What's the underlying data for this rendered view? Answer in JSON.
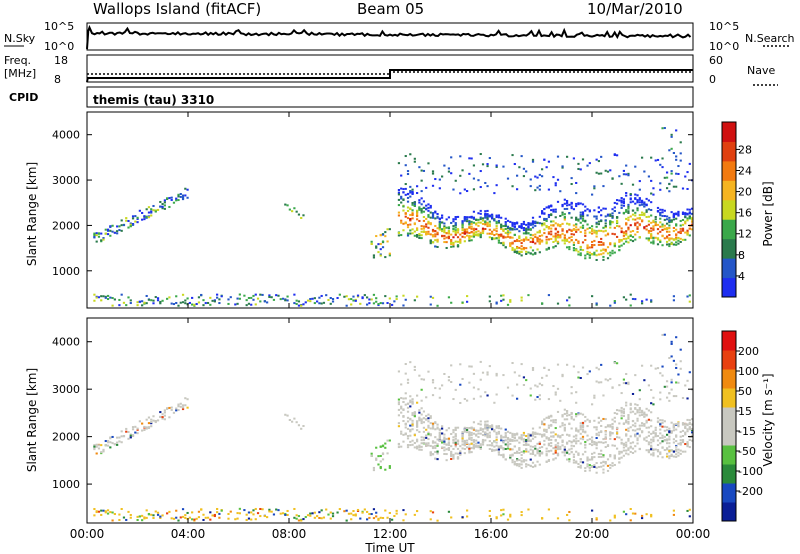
{
  "header": {
    "station": "Wallops Island (fitACF)",
    "beam": "Beam 05",
    "date": "10/Mar/2010"
  },
  "noise_panel": {
    "left_label": "N.Sky",
    "right_label": "N.Search",
    "left_ticks": [
      "10^5",
      "10^0"
    ],
    "right_ticks": [
      "10^5",
      "10^0"
    ]
  },
  "freq_panel": {
    "left_label_line1": "Freq.",
    "left_label_line2": "[MHz]",
    "right_label": "Nave",
    "left_ticks": [
      "18",
      "8"
    ],
    "right_ticks": [
      "60",
      "0"
    ],
    "freq_step": {
      "before": 10,
      "after": 14,
      "change_hour": 12
    }
  },
  "cpid_panel": {
    "label": "CPID",
    "text": "themis (tau) 3310"
  },
  "chart_data": [
    {
      "type": "heatmap",
      "name": "power",
      "xlabel": "",
      "ylabel": "Slant Range [km]",
      "xlim": [
        0,
        24
      ],
      "ylim": [
        180,
        4500
      ],
      "yticks": [
        1000,
        2000,
        3000,
        4000
      ],
      "colorbar": {
        "label": "Power [dB]",
        "ticks": [
          "4",
          "8",
          "12",
          "16",
          "20",
          "24",
          "28"
        ],
        "colors": [
          "#1e2ef0",
          "#2456c8",
          "#2a7a4c",
          "#3aa84a",
          "#c8d820",
          "#f5b420",
          "#f27a10",
          "#e04010",
          "#d01010"
        ]
      }
    },
    {
      "type": "heatmap",
      "name": "velocity",
      "xlabel": "Time UT",
      "ylabel": "Slant Range [km]",
      "xlim": [
        0,
        24
      ],
      "ylim": [
        180,
        4500
      ],
      "yticks": [
        1000,
        2000,
        3000,
        4000
      ],
      "xtick_labels": [
        "00:00",
        "04:00",
        "08:00",
        "12:00",
        "16:00",
        "20:00",
        "00:00"
      ],
      "colorbar": {
        "label": "Velocity [m s⁻¹]",
        "ticks": [
          "200",
          "100",
          "50",
          "15",
          "-15",
          "-50",
          "-100",
          "-200"
        ],
        "colors": [
          "#0a1e96",
          "#1848c0",
          "#2a8a3a",
          "#58c040",
          "#c8c8c0",
          "#c8c8c0",
          "#f0c020",
          "#f08a10",
          "#e84010",
          "#e01010"
        ]
      }
    }
  ]
}
